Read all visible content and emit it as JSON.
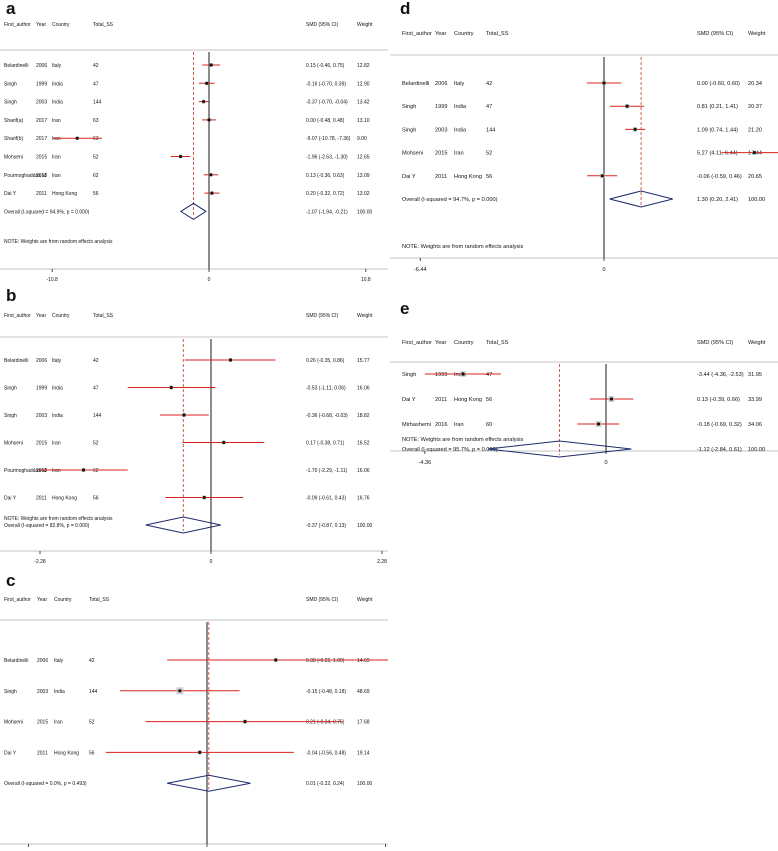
{
  "figure": {
    "colors": {
      "ci": "#d9231f",
      "point": "#111111",
      "diamond": "#1f2a6b",
      "axis": "#000000",
      "mean": "#c0392b"
    },
    "panels": [
      {
        "letter": "a",
        "header": {
          "author": "First_author",
          "year": "Year",
          "country": "Country",
          "ss": "Total_SS",
          "smd": "SMD (95% CI)",
          "weight": "Weight"
        },
        "xlim": [
          -12.6,
          12.6
        ],
        "ticks": [
          "-10.8",
          "0",
          "10.8"
        ],
        "tick_values": [
          -10.8,
          0,
          10.8
        ],
        "studies": [
          {
            "author": "Belardinelli",
            "year": "2006",
            "country": "Italy",
            "ss": "42",
            "smd": 0.15,
            "lo": -0.46,
            "hi": 0.75,
            "ci": "0.15 (-0.46, 0.75)",
            "weight": "12.82"
          },
          {
            "author": "Singh",
            "year": "1999",
            "country": "India",
            "ss": "47",
            "smd": -0.16,
            "lo": -0.7,
            "hi": 0.39,
            "ci": "-0.16 (-0.70, 0.39)",
            "weight": "12.90"
          },
          {
            "author": "Singh",
            "year": "2003",
            "country": "India",
            "ss": "144",
            "smd": -0.37,
            "lo": -0.7,
            "hi": -0.04,
            "ci": "-0.37 (-0.70, -0.04)",
            "weight": "13.42"
          },
          {
            "author": "Sharif(a)",
            "year": "2017",
            "country": "Iran",
            "ss": "63",
            "smd": 0.0,
            "lo": -0.48,
            "hi": 0.48,
            "ci": "0.00 (-0.48, 0.48)",
            "weight": "13.10"
          },
          {
            "author": "Sharif(b)",
            "year": "2017",
            "country": "Iran",
            "ss": "63",
            "smd": -9.07,
            "lo": -10.78,
            "hi": -7.36,
            "ci": "-9.07 (-10.78, -7.36)",
            "weight": "9.00"
          },
          {
            "author": "Mohseni",
            "year": "2015",
            "country": "Iran",
            "ss": "52",
            "smd": -1.96,
            "lo": -2.63,
            "hi": -1.3,
            "ci": "-1.96 (-2.63, -1.30)",
            "weight": "12.65"
          },
          {
            "author": "Pourmoghaddas M",
            "year": "2013",
            "country": "Iran",
            "ss": "62",
            "smd": 0.13,
            "lo": -0.36,
            "hi": 0.63,
            "ci": "0.13 (-0.36, 0.63)",
            "weight": "13.09"
          },
          {
            "author": "Dai Y",
            "year": "2011",
            "country": "Hong Kong",
            "ss": "56",
            "smd": 0.2,
            "lo": -0.32,
            "hi": 0.72,
            "ci": "0.20 (-0.32, 0.72)",
            "weight": "13.02"
          }
        ],
        "overall": {
          "label": "Overall  (I-squared = 94.9%, p = 0.000)",
          "smd": -1.07,
          "lo": -1.94,
          "hi": -0.21,
          "ci": "-1.07 (-1.94, -0.21)",
          "weight": "100.00"
        },
        "note": "NOTE: Weights are from random effects analysis"
      },
      {
        "letter": "b",
        "header": {
          "author": "First_author",
          "year": "Year",
          "country": "Country",
          "ss": "Total_SS",
          "smd": "SMD (95% CI)",
          "weight": "Weight"
        },
        "xlim": [
          -2.6,
          2.6
        ],
        "ticks": [
          "-2.28",
          "0",
          "2.28"
        ],
        "tick_values": [
          -2.28,
          0,
          2.28
        ],
        "studies": [
          {
            "author": "Belardinelli",
            "year": "2006",
            "country": "Italy",
            "ss": "42",
            "smd": 0.26,
            "lo": -0.35,
            "hi": 0.86,
            "ci": "0.26 (-0.35, 0.86)",
            "weight": "15.77"
          },
          {
            "author": "Singh",
            "year": "1999",
            "country": "India",
            "ss": "47",
            "smd": -0.53,
            "lo": -1.11,
            "hi": 0.06,
            "ci": "-0.53 (-1.11, 0.06)",
            "weight": "16.06"
          },
          {
            "author": "Singh",
            "year": "2003",
            "country": "India",
            "ss": "144",
            "smd": -0.36,
            "lo": -0.68,
            "hi": -0.03,
            "ci": "-0.36 (-0.68, -0.03)",
            "weight": "18.82"
          },
          {
            "author": "Mohseni",
            "year": "2015",
            "country": "Iran",
            "ss": "52",
            "smd": 0.17,
            "lo": -0.38,
            "hi": 0.71,
            "ci": "0.17 (-0.38, 0.71)",
            "weight": "16.52"
          },
          {
            "author": "Pourmoghaddas M",
            "year": "2013",
            "country": "Iran",
            "ss": "62",
            "smd": -1.7,
            "lo": -2.29,
            "hi": -1.11,
            "ci": "-1.70 (-2.29, -1.11)",
            "weight": "16.06"
          },
          {
            "author": "Dai Y",
            "year": "2011",
            "country": "Hong Kong",
            "ss": "56",
            "smd": -0.09,
            "lo": -0.61,
            "hi": 0.43,
            "ci": "-0.09 (-0.61, 0.43)",
            "weight": "16.76"
          }
        ],
        "overall": {
          "label": "Overall  (I-squared = 82.8%, p = 0.000)",
          "smd": -0.37,
          "lo": -0.87,
          "hi": 0.13,
          "ci": "-0.37 (-0.87, 0.13)",
          "weight": "100.00"
        },
        "note": "NOTE: Weights are from random effects analysis"
      },
      {
        "letter": "c",
        "header": {
          "author": "First_author",
          "year": "Year",
          "country": "Country",
          "ss": "Total_SS",
          "smd": "SMD (95% CI)",
          "weight": "Weight"
        },
        "xlim": [
          -1.0,
          1.0
        ],
        "ticks": [
          "-.986",
          "0",
          ".986"
        ],
        "tick_values": [
          -0.986,
          0,
          0.986
        ],
        "studies": [
          {
            "author": "Belardinelli",
            "year": "2006",
            "country": "Italy",
            "ss": "42",
            "smd": 0.38,
            "lo": -0.22,
            "hi": 1.0,
            "ci": "0.38 (-0.22, 1.00)",
            "weight": "14.69"
          },
          {
            "author": "Singh",
            "year": "2003",
            "country": "India",
            "ss": "144",
            "smd": -0.15,
            "lo": -0.48,
            "hi": 0.18,
            "ci": "-0.15 (-0.48, 0.18)",
            "weight": "48.69"
          },
          {
            "author": "Mohseni",
            "year": "2015",
            "country": "Iran",
            "ss": "52",
            "smd": 0.21,
            "lo": -0.34,
            "hi": 0.75,
            "ci": "0.21 (-0.34, 0.75)",
            "weight": "17.68"
          },
          {
            "author": "Dai Y",
            "year": "2011",
            "country": "Hong Kong",
            "ss": "56",
            "smd": -0.04,
            "lo": -0.56,
            "hi": 0.48,
            "ci": "-0.04 (-0.56, 0.48)",
            "weight": "19.14"
          }
        ],
        "overall": {
          "label": "Overall  (I-squared = 0.0%, p = 0.493)",
          "smd": 0.01,
          "lo": -0.22,
          "hi": 0.24,
          "ci": "0.01 (-0.22, 0.24)",
          "weight": "100.00"
        },
        "note": ""
      },
      {
        "letter": "d",
        "header": {
          "author": "First_author",
          "year": "Year",
          "country": "Country",
          "ss": "Total_SS",
          "smd": "SMD (95% CI)",
          "weight": "Weight"
        },
        "xlim": [
          -7.5,
          7.5
        ],
        "ticks": [
          "-6.44",
          "0",
          "6.44"
        ],
        "tick_values": [
          -6.44,
          0,
          6.44
        ],
        "studies": [
          {
            "author": "Belardinelli",
            "year": "2006",
            "country": "Italy",
            "ss": "42",
            "smd": 0.0,
            "lo": -0.6,
            "hi": 0.6,
            "ci": "0.00 (-0.60, 0.60)",
            "weight": "20.34"
          },
          {
            "author": "Singh",
            "year": "1999",
            "country": "India",
            "ss": "47",
            "smd": 0.81,
            "lo": 0.21,
            "hi": 1.41,
            "ci": "0.81 (0.21, 1.41)",
            "weight": "20.37"
          },
          {
            "author": "Singh",
            "year": "2003",
            "country": "India",
            "ss": "144",
            "smd": 1.09,
            "lo": 0.74,
            "hi": 1.44,
            "ci": "1.09 (0.74, 1.44)",
            "weight": "21.20"
          },
          {
            "author": "Mohseni",
            "year": "2015",
            "country": "Iran",
            "ss": "52",
            "smd": 5.27,
            "lo": 4.11,
            "hi": 6.44,
            "ci": "5.27 (4.11, 6.44)",
            "weight": "17.44"
          },
          {
            "author": "Dai Y",
            "year": "2011",
            "country": "Hong Kong",
            "ss": "56",
            "smd": -0.06,
            "lo": -0.59,
            "hi": 0.46,
            "ci": "-0.06 (-0.59, 0.46)",
            "weight": "20.65"
          }
        ],
        "overall": {
          "label": "Overall  (I-squared = 94.7%, p = 0.000)",
          "smd": 1.3,
          "lo": 0.2,
          "hi": 2.41,
          "ci": "1.30 (0.20, 2.41)",
          "weight": "100.00"
        },
        "note": "NOTE: Weights are from random effects analysis"
      },
      {
        "letter": "e",
        "header": {
          "author": "First_author",
          "year": "Year",
          "country": "Country",
          "ss": "Total_SS",
          "smd": "SMD (95% CI)",
          "weight": "Weight"
        },
        "xlim": [
          -5.2,
          5.2
        ],
        "ticks": [
          "-4.36",
          "0",
          "4.36"
        ],
        "tick_values": [
          -4.36,
          0,
          4.36
        ],
        "studies": [
          {
            "author": "Singh",
            "year": "1999",
            "country": "India",
            "ss": "47",
            "smd": -3.44,
            "lo": -4.36,
            "hi": -2.53,
            "ci": "-3.44 (-4.36, -2.53)",
            "weight": "31.95"
          },
          {
            "author": "Dai Y",
            "year": "2011",
            "country": "Hong Kong",
            "ss": "56",
            "smd": 0.13,
            "lo": -0.39,
            "hi": 0.66,
            "ci": "0.13 (-0.39, 0.66)",
            "weight": "33.99"
          },
          {
            "author": "Mirhashemi",
            "year": "2016",
            "country": "Iran",
            "ss": "60",
            "smd": -0.18,
            "lo": -0.69,
            "hi": 0.32,
            "ci": "-0.18 (-0.69, 0.32)",
            "weight": "34.06"
          }
        ],
        "overall": {
          "label": "Overall  (I-squared = 95.7%, p = 0.000)",
          "smd": -1.12,
          "lo": -2.84,
          "hi": 0.61,
          "ci": "-1.12 (-2.84, 0.61)",
          "weight": "100.00"
        },
        "note": "NOTE: Weights are from random effects analysis"
      }
    ]
  },
  "chart_data": [
    {
      "type": "forest",
      "title": "a",
      "xlabel": "SMD (95% CI)",
      "xlim": [
        -12.6,
        12.6
      ],
      "categories": [
        "Belardinelli 2006",
        "Singh 1999",
        "Singh 2003",
        "Sharif(a) 2017",
        "Sharif(b) 2017",
        "Mohseni 2015",
        "Pourmoghaddas M 2013",
        "Dai Y 2011",
        "Overall"
      ],
      "series": [
        {
          "name": "SMD",
          "values": [
            0.15,
            -0.16,
            -0.37,
            0.0,
            -9.07,
            -1.96,
            0.13,
            0.2,
            -1.07
          ]
        },
        {
          "name": "Lower CI",
          "values": [
            -0.46,
            -0.7,
            -0.7,
            -0.48,
            -10.78,
            -2.63,
            -0.36,
            -0.32,
            -1.94
          ]
        },
        {
          "name": "Upper CI",
          "values": [
            0.75,
            0.39,
            -0.04,
            0.48,
            -7.36,
            -1.3,
            0.63,
            0.72,
            -0.21
          ]
        },
        {
          "name": "Weight",
          "values": [
            12.82,
            12.9,
            13.42,
            13.1,
            9.0,
            12.65,
            13.09,
            13.02,
            100.0
          ]
        }
      ]
    },
    {
      "type": "forest",
      "title": "b",
      "xlabel": "SMD (95% CI)",
      "xlim": [
        -2.6,
        2.6
      ],
      "categories": [
        "Belardinelli 2006",
        "Singh 1999",
        "Singh 2003",
        "Mohseni 2015",
        "Pourmoghaddas M 2013",
        "Dai Y 2011",
        "Overall"
      ],
      "series": [
        {
          "name": "SMD",
          "values": [
            0.26,
            -0.53,
            -0.36,
            0.17,
            -1.7,
            -0.09,
            -0.37
          ]
        },
        {
          "name": "Lower CI",
          "values": [
            -0.35,
            -1.11,
            -0.68,
            -0.38,
            -2.29,
            -0.61,
            -0.87
          ]
        },
        {
          "name": "Upper CI",
          "values": [
            0.86,
            0.06,
            -0.03,
            0.71,
            -1.11,
            0.43,
            0.13
          ]
        },
        {
          "name": "Weight",
          "values": [
            15.77,
            16.06,
            18.82,
            16.52,
            16.06,
            16.76,
            100.0
          ]
        }
      ]
    },
    {
      "type": "forest",
      "title": "c",
      "xlabel": "SMD (95% CI)",
      "xlim": [
        -1.0,
        1.0
      ],
      "categories": [
        "Belardinelli 2006",
        "Singh 2003",
        "Mohseni 2015",
        "Dai Y 2011",
        "Overall"
      ],
      "series": [
        {
          "name": "SMD",
          "values": [
            0.38,
            -0.15,
            0.21,
            -0.04,
            0.01
          ]
        },
        {
          "name": "Lower CI",
          "values": [
            -0.22,
            -0.48,
            -0.34,
            -0.56,
            -0.22
          ]
        },
        {
          "name": "Upper CI",
          "values": [
            1.0,
            0.18,
            0.75,
            0.48,
            0.24
          ]
        },
        {
          "name": "Weight",
          "values": [
            14.69,
            48.69,
            17.68,
            19.14,
            100.0
          ]
        }
      ]
    },
    {
      "type": "forest",
      "title": "d",
      "xlabel": "SMD (95% CI)",
      "xlim": [
        -7.5,
        7.5
      ],
      "categories": [
        "Belardinelli 2006",
        "Singh 1999",
        "Singh 2003",
        "Mohseni 2015",
        "Dai Y 2011",
        "Overall"
      ],
      "series": [
        {
          "name": "SMD",
          "values": [
            0.0,
            0.81,
            1.09,
            5.27,
            -0.06,
            1.3
          ]
        },
        {
          "name": "Lower CI",
          "values": [
            -0.6,
            0.21,
            0.74,
            4.11,
            -0.59,
            0.2
          ]
        },
        {
          "name": "Upper CI",
          "values": [
            0.6,
            1.41,
            1.44,
            6.44,
            0.46,
            2.41
          ]
        },
        {
          "name": "Weight",
          "values": [
            20.34,
            20.37,
            21.2,
            17.44,
            20.65,
            100.0
          ]
        }
      ]
    },
    {
      "type": "forest",
      "title": "e",
      "xlabel": "SMD (95% CI)",
      "xlim": [
        -5.2,
        5.2
      ],
      "categories": [
        "Singh 1999",
        "Dai Y 2011",
        "Mirhashemi 2016",
        "Overall"
      ],
      "series": [
        {
          "name": "SMD",
          "values": [
            -3.44,
            0.13,
            -0.18,
            -1.12
          ]
        },
        {
          "name": "Lower CI",
          "values": [
            -4.36,
            -0.39,
            -0.69,
            -2.84
          ]
        },
        {
          "name": "Upper CI",
          "values": [
            -2.53,
            0.66,
            0.32,
            0.61
          ]
        },
        {
          "name": "Weight",
          "values": [
            31.95,
            33.99,
            34.06,
            100.0
          ]
        }
      ]
    }
  ]
}
